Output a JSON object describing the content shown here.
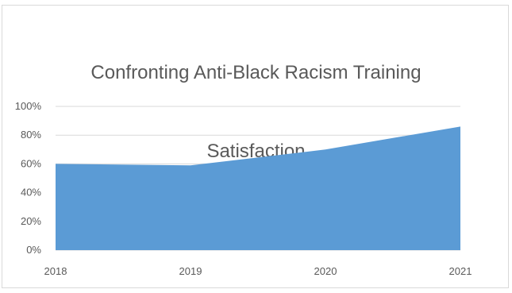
{
  "chart_data": {
    "type": "area",
    "title": "Confronting Anti-Black Racism Training Satisfaction",
    "title_lines": [
      "Confronting Anti-Black Racism Training",
      "Satisfaction"
    ],
    "x": [
      "2018",
      "2019",
      "2020",
      "2021"
    ],
    "series": [
      {
        "values": [
          0.6,
          0.59,
          0.7,
          0.86
        ]
      }
    ],
    "ylim": [
      0,
      1
    ],
    "y_ticks": [
      0,
      0.2,
      0.4,
      0.6,
      0.8,
      1.0
    ],
    "y_tick_labels": [
      "0%",
      "20%",
      "40%",
      "60%",
      "80%",
      "100%"
    ],
    "grid": true,
    "legend": "none",
    "colors": {
      "area_fill": "#5b9bd5",
      "gridline": "#d9d9d9",
      "axis_text": "#595959"
    }
  }
}
